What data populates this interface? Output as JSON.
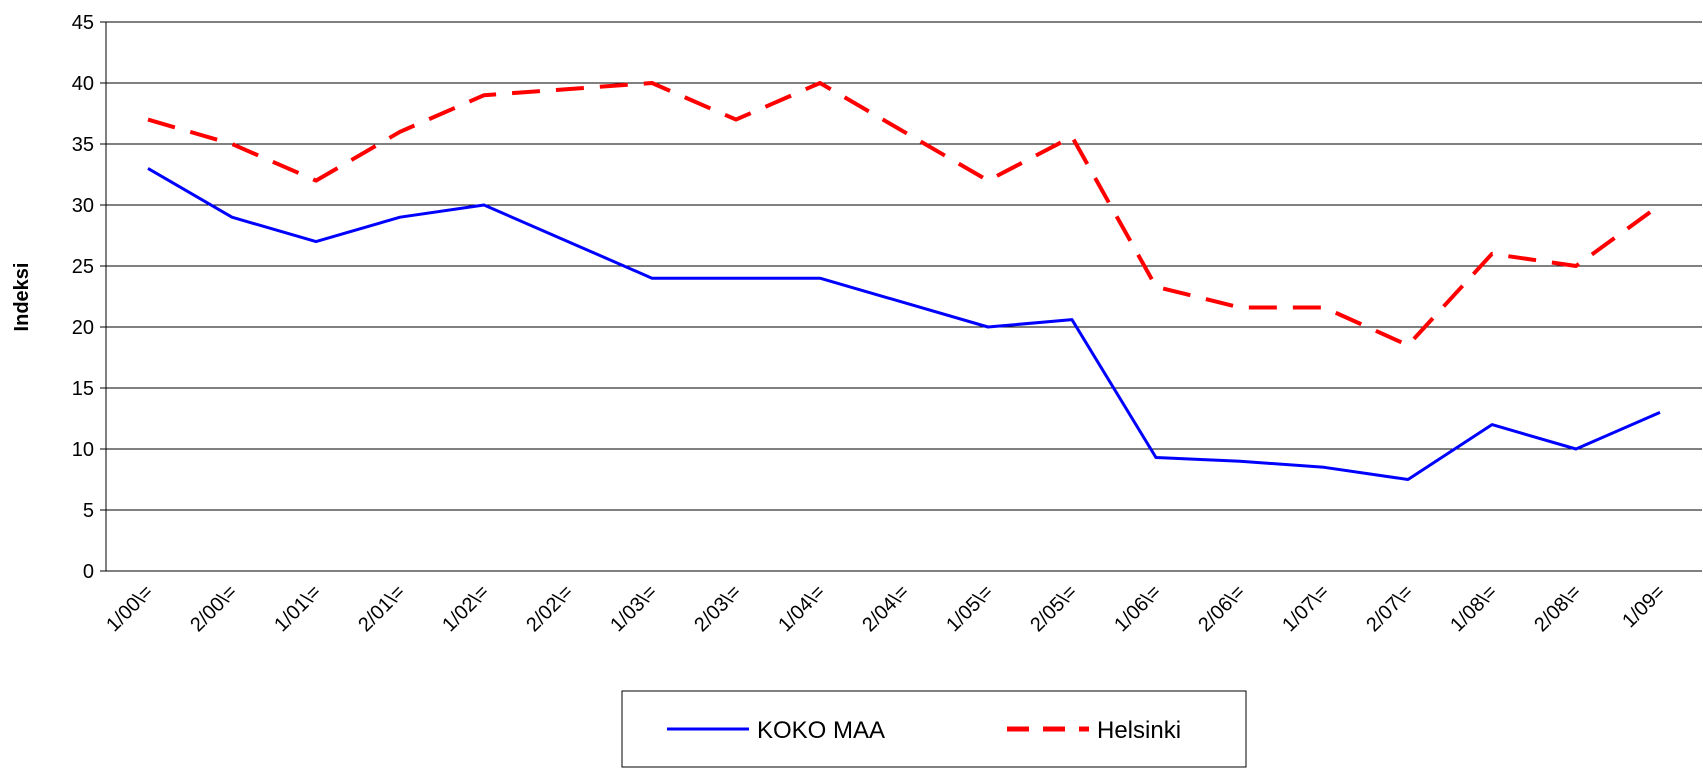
{
  "chart_data": {
    "type": "line",
    "y_label": "Indeksi",
    "categories": [
      "1/00\\=",
      "2/00\\=",
      "1/01\\=",
      "2/01\\=",
      "1/02\\=",
      "2/02\\=",
      "1/03\\=",
      "2/03\\=",
      "1/04\\=",
      "2/04\\=",
      "1/05\\=",
      "2/05\\=",
      "1/06\\=",
      "2/06\\=",
      "1/07\\=",
      "2/07\\=",
      "1/08\\=",
      "2/08\\=",
      "1/09="
    ],
    "series": [
      {
        "name": "KOKO MAA",
        "color": "#0000ff",
        "dash": false,
        "values": [
          33,
          29,
          27,
          29,
          30,
          27,
          24,
          24,
          24,
          22,
          20,
          20.6,
          9.3,
          9,
          8.5,
          7.5,
          12,
          10,
          13
        ]
      },
      {
        "name": "Helsinki",
        "color": "#ff0000",
        "dash": true,
        "values": [
          37,
          35,
          32,
          36,
          39,
          39.5,
          40,
          37,
          40,
          36,
          32,
          35.6,
          23.3,
          21.6,
          21.6,
          18.5,
          26,
          25,
          30
        ]
      }
    ],
    "ylim": [
      0,
      45
    ],
    "yticks": [
      0,
      5,
      10,
      15,
      20,
      25,
      30,
      35,
      40,
      45
    ],
    "grid": true
  }
}
